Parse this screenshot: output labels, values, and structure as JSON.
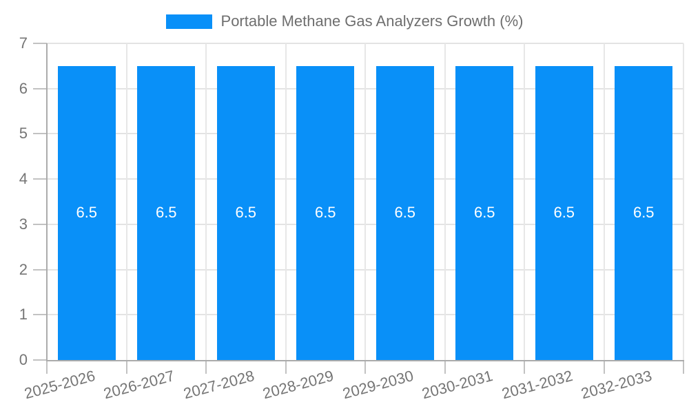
{
  "chart_data": {
    "type": "bar",
    "title": "Portable Methane Gas Analyzers Growth (%)",
    "categories": [
      "2025-2026",
      "2026-2027",
      "2027-2028",
      "2028-2029",
      "2029-2030",
      "2030-2031",
      "2031-2032",
      "2032-2033"
    ],
    "values": [
      6.5,
      6.5,
      6.5,
      6.5,
      6.5,
      6.5,
      6.5,
      6.5
    ],
    "value_labels": [
      "6.5",
      "6.5",
      "6.5",
      "6.5",
      "6.5",
      "6.5",
      "6.5",
      "6.5"
    ],
    "xlabel": "",
    "ylabel": "",
    "ylim": [
      0,
      7
    ],
    "yticks": [
      0,
      1,
      2,
      3,
      4,
      5,
      6,
      7
    ],
    "grid": true,
    "legend_position": "top",
    "x_label_rotation_deg": -15
  },
  "colors": {
    "bar": "#0990F8",
    "value_label": "#ffffff",
    "axis_text": "#757575",
    "legend_text": "#6e6e6e",
    "gridline_h": "#e3e3e3",
    "gridline_v": "#e7e7e7",
    "axis_line": "#ababab",
    "tick_mark": "#c2c2c2",
    "background": "#ffffff"
  }
}
